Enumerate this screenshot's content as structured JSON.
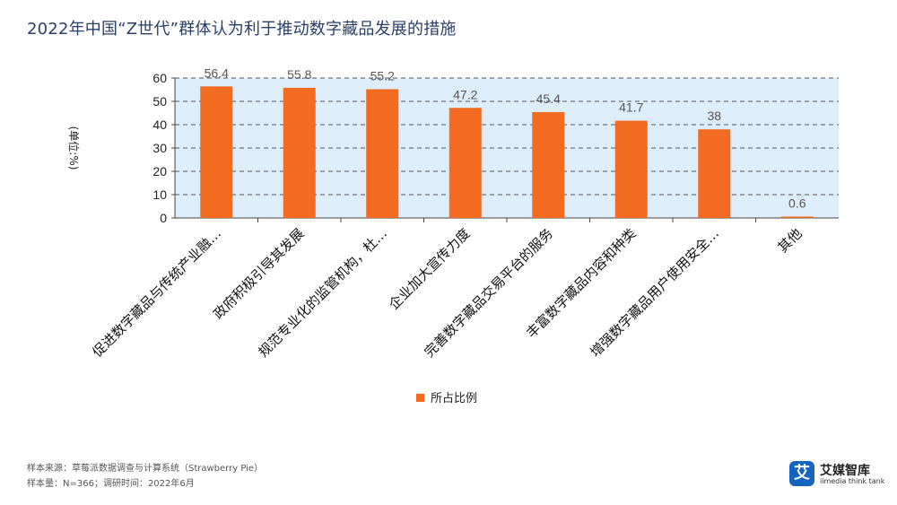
{
  "page": {
    "title": "2022年中国“Z世代”群体认为利于推动数字藏品发展的措施",
    "footnote_source": "样本来源：草莓派数据调查与计算系统（Strawberry Pie）",
    "footnote_sample": "样本量：N=366；调研时间：2022年6月"
  },
  "brand": {
    "mark": "艾",
    "name": "艾媒智库",
    "sub": "iimedia think tank",
    "color": "#1565c0"
  },
  "chart_data": {
    "type": "bar",
    "categories": [
      "促进数字藏品与传统产业融…",
      "政府积极引导其发展",
      "规范专业化的监管机构，杜…",
      "企业加大宣传力度",
      "完善数字藏品交易平台的服务",
      "丰富数字藏品内容和种类",
      "增强数字藏品用户使用安全…",
      "其他"
    ],
    "series": [
      {
        "name": "所占比例",
        "values": [
          56.4,
          55.8,
          55.2,
          47.2,
          45.4,
          41.7,
          38,
          0.6
        ],
        "color": "#f26b21"
      }
    ],
    "ylabel": "(单位:%)",
    "ylim": [
      0,
      60
    ],
    "yticks": [
      0,
      10,
      20,
      30,
      40,
      50,
      60
    ],
    "grid": true,
    "legend": "bottom-center",
    "plot_bg": "#ddeefa"
  }
}
